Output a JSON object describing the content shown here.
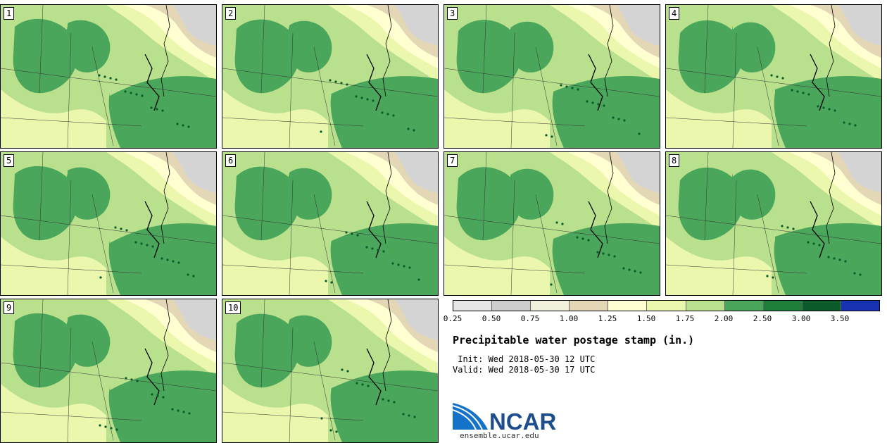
{
  "title": "Precipitable water postage stamp (in.)",
  "init_line": " Init: Wed 2018-05-30 12 UTC",
  "valid_line": "Valid: Wed 2018-05-30 17 UTC",
  "logo_text": "NCAR",
  "website": "ensemble.ucar.edu",
  "panels": [
    "1",
    "2",
    "3",
    "4",
    "5",
    "6",
    "7",
    "8",
    "9",
    "10"
  ],
  "colorbar": {
    "ticks": [
      "0.25",
      "0.50",
      "0.75",
      "1.00",
      "1.25",
      "1.50",
      "1.75",
      "2.00",
      "2.50",
      "3.00",
      "3.50"
    ],
    "colors": [
      "#e6e6e6",
      "#cdcdcd",
      "#f2f2dc",
      "#e3d7b6",
      "#ffffd2",
      "#eaf7ad",
      "#b9e08c",
      "#4aa65b",
      "#1f7d3a",
      "#0a5b29",
      "#1732b3"
    ]
  },
  "map_colors": {
    "light_gray": "#d4d4d4",
    "tan": "#e3d7b6",
    "cream": "#ffffd2",
    "pale_green": "#eaf7ad",
    "light_green": "#b9e08c",
    "medium_green": "#4aa65b",
    "dark_green": "#0a5b29"
  }
}
